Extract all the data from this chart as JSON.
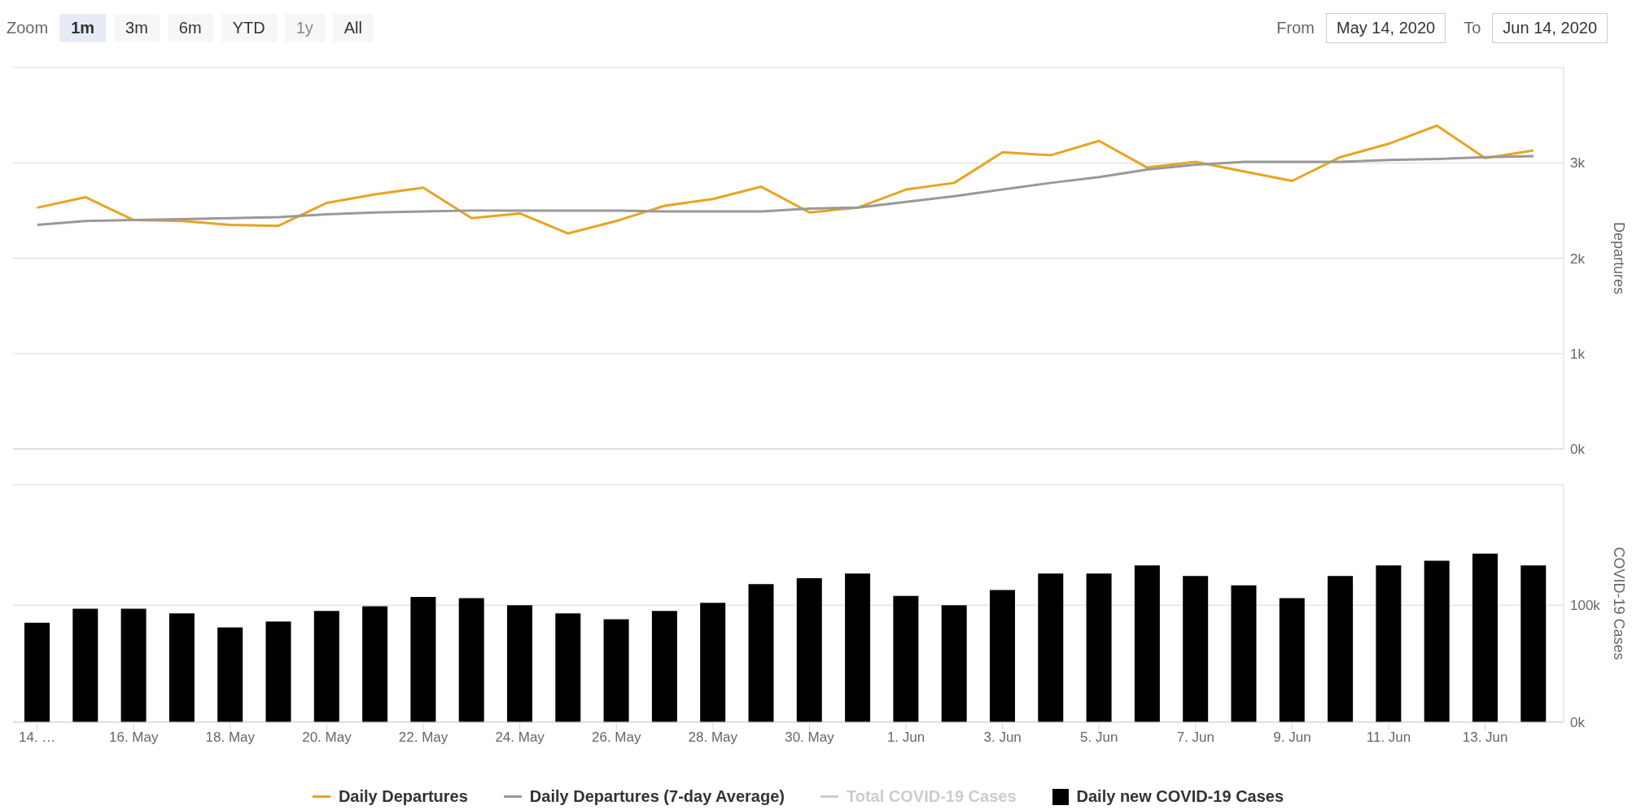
{
  "chart_data": [
    {
      "type": "line",
      "annotations": [
        "Zoom",
        "1m",
        "3m",
        "6m",
        "YTD",
        "1y",
        "All",
        "From",
        "May 14, 2020",
        "To",
        "Jun 14, 2020"
      ],
      "ylabel": "Departures",
      "x": [
        "2020-05-14",
        "2020-05-15",
        "2020-05-16",
        "2020-05-17",
        "2020-05-18",
        "2020-05-19",
        "2020-05-20",
        "2020-05-21",
        "2020-05-22",
        "2020-05-23",
        "2020-05-24",
        "2020-05-25",
        "2020-05-26",
        "2020-05-27",
        "2020-05-28",
        "2020-05-29",
        "2020-05-30",
        "2020-05-31",
        "2020-06-01",
        "2020-06-02",
        "2020-06-03",
        "2020-06-04",
        "2020-06-05",
        "2020-06-06",
        "2020-06-07",
        "2020-06-08",
        "2020-06-09",
        "2020-06-10",
        "2020-06-11",
        "2020-06-12",
        "2020-06-13",
        "2020-06-14"
      ],
      "xlim": [
        "2020-05-13T12:00",
        "2020-06-14T15:00"
      ],
      "series": [
        {
          "name": "Daily Departures",
          "color": "#eaa31f",
          "values": [
            2530,
            2640,
            2400,
            2390,
            2350,
            2340,
            2580,
            2670,
            2740,
            2420,
            2470,
            2260,
            2390,
            2550,
            2620,
            2750,
            2480,
            2530,
            2720,
            2790,
            3110,
            3080,
            3230,
            2950,
            3010,
            2910,
            2810,
            3060,
            3200,
            3390,
            3050,
            3130
          ]
        },
        {
          "name": "Daily Departures (7-day Average)",
          "color": "#999999",
          "values": [
            2350,
            2390,
            2400,
            2410,
            2420,
            2430,
            2460,
            2480,
            2490,
            2500,
            2500,
            2500,
            2500,
            2490,
            2490,
            2490,
            2520,
            2530,
            2590,
            2650,
            2720,
            2790,
            2850,
            2930,
            2980,
            3010,
            3010,
            3010,
            3030,
            3040,
            3060,
            3070
          ]
        }
      ],
      "ylim": [
        0,
        4000
      ],
      "yticks": [
        {
          "value": 0,
          "label": "0k"
        },
        {
          "value": 1000,
          "label": "1k"
        },
        {
          "value": 2000,
          "label": "2k"
        },
        {
          "value": 3000,
          "label": "3k"
        },
        {
          "value": 4000,
          "label": null
        }
      ],
      "grid": "y",
      "tick_labels": "y",
      "legend": "bottom"
    },
    {
      "type": "bar",
      "ylabel": "COVID-19 Cases",
      "x": [
        "2020-05-14",
        "2020-05-15",
        "2020-05-16",
        "2020-05-17",
        "2020-05-18",
        "2020-05-19",
        "2020-05-20",
        "2020-05-21",
        "2020-05-22",
        "2020-05-23",
        "2020-05-24",
        "2020-05-25",
        "2020-05-26",
        "2020-05-27",
        "2020-05-28",
        "2020-05-29",
        "2020-05-30",
        "2020-05-31",
        "2020-06-01",
        "2020-06-02",
        "2020-06-03",
        "2020-06-04",
        "2020-06-05",
        "2020-06-06",
        "2020-06-07",
        "2020-06-08",
        "2020-06-09",
        "2020-06-10",
        "2020-06-11",
        "2020-06-12",
        "2020-06-13",
        "2020-06-14"
      ],
      "xlim": [
        "2020-05-13T12:00",
        "2020-06-14T15:00"
      ],
      "xticks": [
        {
          "value": "2020-05-14",
          "label": "14. …"
        },
        {
          "value": "2020-05-16",
          "label": "16. May"
        },
        {
          "value": "2020-05-18",
          "label": "18. May"
        },
        {
          "value": "2020-05-20",
          "label": "20. May"
        },
        {
          "value": "2020-05-22",
          "label": "22. May"
        },
        {
          "value": "2020-05-24",
          "label": "24. May"
        },
        {
          "value": "2020-05-26",
          "label": "26. May"
        },
        {
          "value": "2020-05-28",
          "label": "28. May"
        },
        {
          "value": "2020-05-30",
          "label": "30. May"
        },
        {
          "value": "2020-06-01",
          "label": "1. Jun"
        },
        {
          "value": "2020-06-03",
          "label": "3. Jun"
        },
        {
          "value": "2020-06-05",
          "label": "5. Jun"
        },
        {
          "value": "2020-06-07",
          "label": "7. Jun"
        },
        {
          "value": "2020-06-09",
          "label": "9. Jun"
        },
        {
          "value": "2020-06-11",
          "label": "11. Jun"
        },
        {
          "value": "2020-06-13",
          "label": "13. Jun"
        }
      ],
      "series": [
        {
          "name": "Total COVID-19 Cases",
          "type": "line",
          "color": "#cccccc",
          "values": [
            null,
            null,
            null,
            null,
            null,
            null,
            null,
            null,
            null,
            null,
            null,
            null,
            null,
            null,
            null,
            null,
            null,
            null,
            null,
            null,
            null,
            null,
            null,
            null,
            null,
            null,
            null,
            null,
            null,
            null,
            null,
            null
          ]
        },
        {
          "name": "Daily new COVID-19 Cases",
          "color": "#000000",
          "values": [
            85000,
            97000,
            97000,
            93000,
            81000,
            86000,
            95000,
            99000,
            107000,
            106000,
            100000,
            93000,
            88000,
            95000,
            102000,
            118000,
            123000,
            127000,
            108000,
            100000,
            113000,
            127000,
            127000,
            134000,
            125000,
            117000,
            106000,
            125000,
            134000,
            138000,
            144000,
            134000
          ]
        }
      ],
      "ylim": [
        0,
        203000
      ],
      "yticks": [
        {
          "value": 0,
          "label": "0k"
        },
        {
          "value": 100000,
          "label": "100k"
        }
      ],
      "grid": "y",
      "legend": "bottom"
    }
  ]
}
